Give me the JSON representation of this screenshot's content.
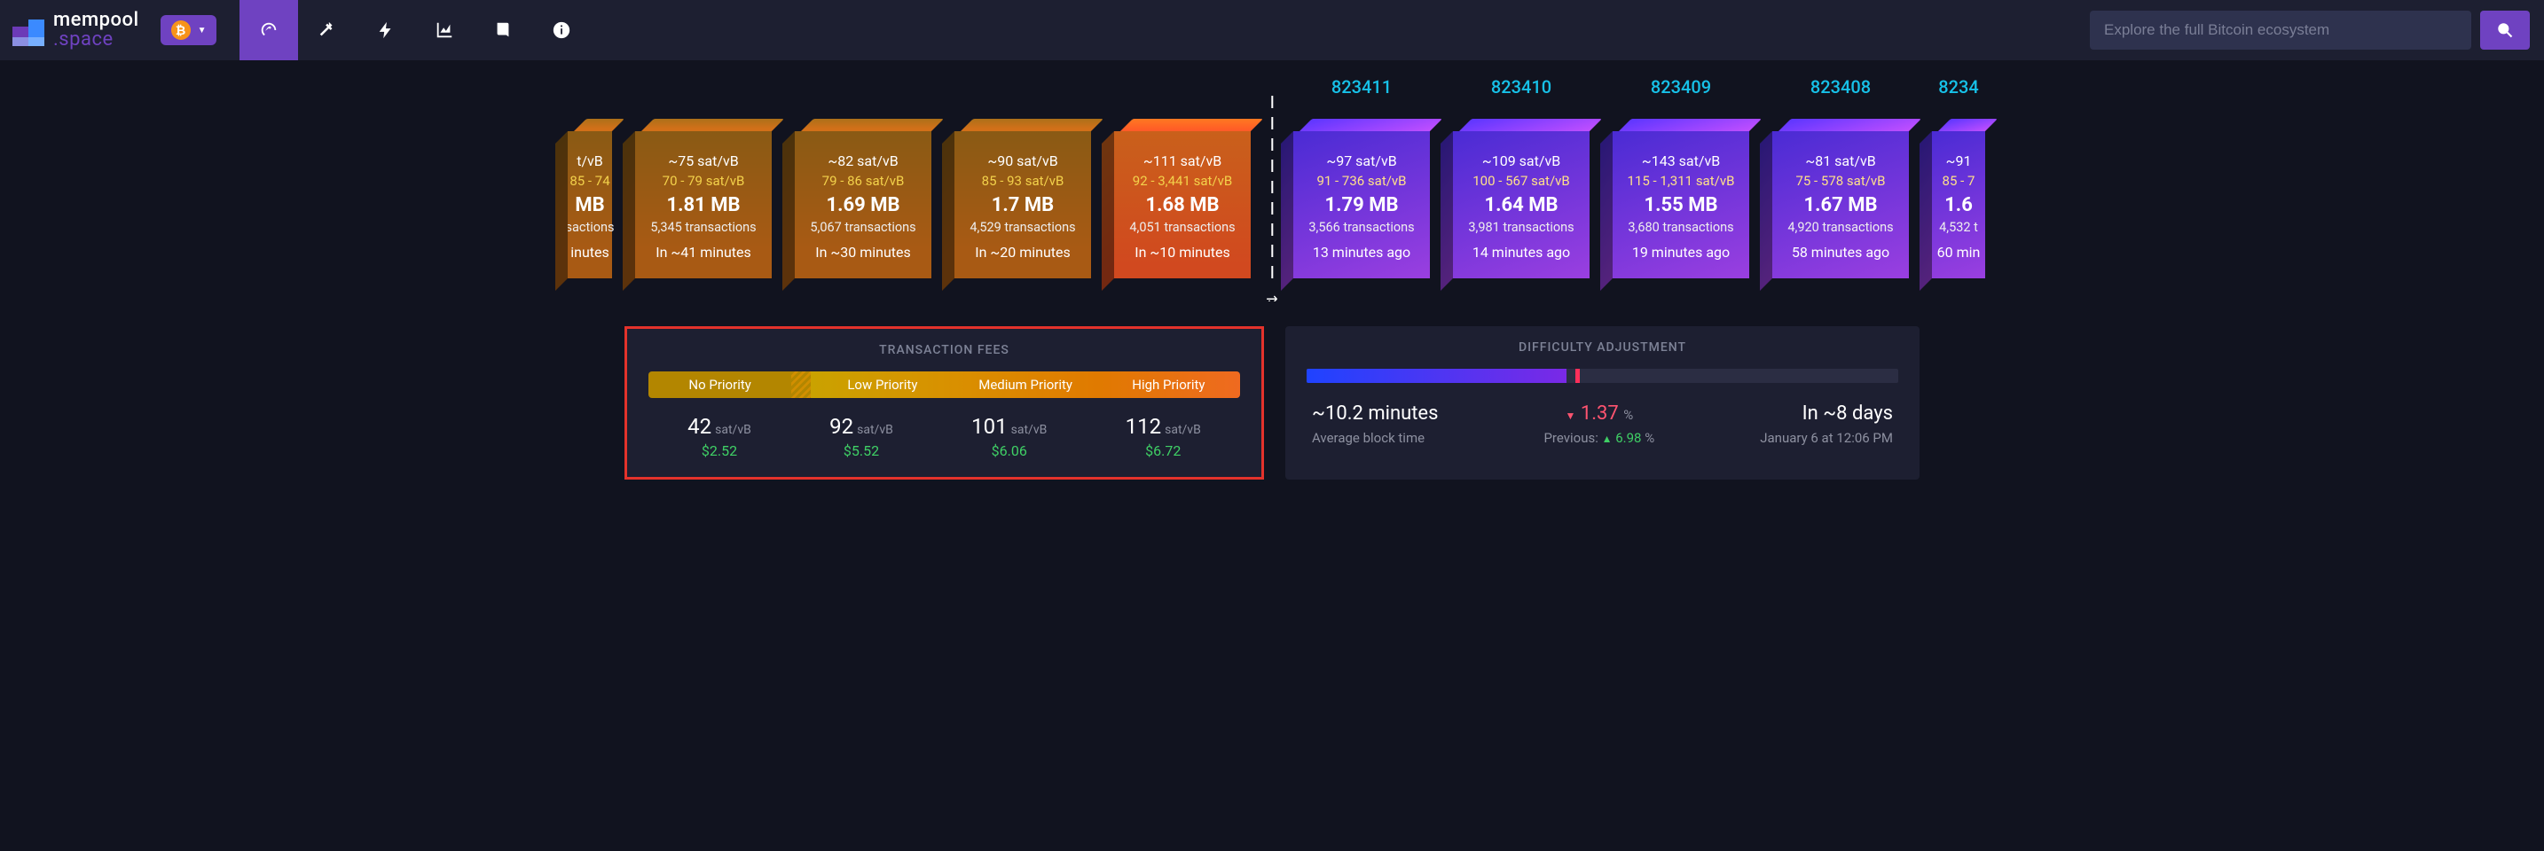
{
  "brand": {
    "line1": "mempool",
    "line2": ".space"
  },
  "network_btc_glyph": "₿",
  "search": {
    "placeholder": "Explore the full Bitcoin ecosystem"
  },
  "pending": [
    {
      "rate": "~111 sat/vB",
      "range": "92 - 3,441 sat/vB",
      "size": "1.68 MB",
      "tx": "4,051 transactions",
      "eta": "In ~10 minutes",
      "hi": true
    },
    {
      "rate": "~90 sat/vB",
      "range": "85 - 93 sat/vB",
      "size": "1.7 MB",
      "tx": "4,529 transactions",
      "eta": "In ~20 minutes"
    },
    {
      "rate": "~82 sat/vB",
      "range": "79 - 86 sat/vB",
      "size": "1.69 MB",
      "tx": "5,067 transactions",
      "eta": "In ~30 minutes"
    },
    {
      "rate": "~75 sat/vB",
      "range": "70 - 79 sat/vB",
      "size": "1.81 MB",
      "tx": "5,345 transactions",
      "eta": "In ~41 minutes"
    },
    {
      "rate": "t/vB",
      "range": "85 - 74",
      "size": "MB",
      "tx": "sactions",
      "eta": "inutes",
      "partial": true
    }
  ],
  "mined": [
    {
      "height": "823411",
      "rate": "~97 sat/vB",
      "range": "91 - 736 sat/vB",
      "size": "1.79 MB",
      "tx": "3,566 transactions",
      "ago": "13 minutes ago"
    },
    {
      "height": "823410",
      "rate": "~109 sat/vB",
      "range": "100 - 567 sat/vB",
      "size": "1.64 MB",
      "tx": "3,981 transactions",
      "ago": "14 minutes ago"
    },
    {
      "height": "823409",
      "rate": "~143 sat/vB",
      "range": "115 - 1,311 sat/vB",
      "size": "1.55 MB",
      "tx": "3,680 transactions",
      "ago": "19 minutes ago"
    },
    {
      "height": "823408",
      "rate": "~81 sat/vB",
      "range": "75 - 578 sat/vB",
      "size": "1.67 MB",
      "tx": "4,920 transactions",
      "ago": "58 minutes ago"
    },
    {
      "height": "8234",
      "rate": "~91",
      "range": "85 - 7",
      "size": "1.6",
      "tx": "4,532 t",
      "ago": "60 min",
      "partial": true
    }
  ],
  "fees": {
    "title": "TRANSACTION FEES",
    "labels": {
      "no": "No Priority",
      "low": "Low Priority",
      "med": "Medium Priority",
      "high": "High Priority"
    },
    "unit": "sat/vB",
    "tiers": [
      {
        "v": "42",
        "usd": "$2.52"
      },
      {
        "v": "92",
        "usd": "$5.52"
      },
      {
        "v": "101",
        "usd": "$6.06"
      },
      {
        "v": "112",
        "usd": "$6.72"
      }
    ]
  },
  "difficulty": {
    "title": "DIFFICULTY ADJUSTMENT",
    "progress_pct": 44,
    "tick_pct": 45.5,
    "avg_block_time": "~10.2 minutes",
    "avg_block_time_label": "Average block time",
    "change": "1.37",
    "change_dir": "down",
    "pct": "%",
    "previous_label": "Previous:",
    "previous": "6.98",
    "previous_dir": "up",
    "eta": "In ~8 days",
    "eta_ts": "January 6 at 12:06 PM"
  }
}
